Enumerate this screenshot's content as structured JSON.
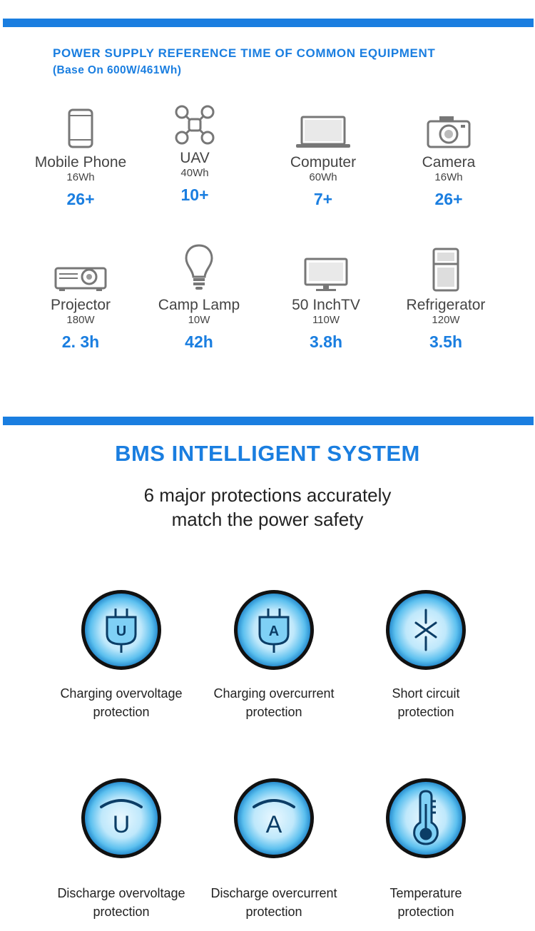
{
  "section1": {
    "title": "POWER SUPPLY REFERENCE TIME OF COMMON EQUIPMENT",
    "subtitle": "(Base On 600W/461Wh)",
    "devices": [
      {
        "name": "Mobile Phone",
        "spec": "16Wh",
        "time": "26+",
        "icon": "mobile-phone-icon"
      },
      {
        "name": "UAV",
        "spec": "40Wh",
        "time": "10+",
        "icon": "drone-icon"
      },
      {
        "name": "Computer",
        "spec": "60Wh",
        "time": "7+",
        "icon": "laptop-icon"
      },
      {
        "name": "Camera",
        "spec": "16Wh",
        "time": "26+",
        "icon": "camera-icon"
      },
      {
        "name": "Projector",
        "spec": "180W",
        "time": "2. 3h",
        "icon": "projector-icon"
      },
      {
        "name": "Camp Lamp",
        "spec": "10W",
        "time": "42h",
        "icon": "light-bulb-icon"
      },
      {
        "name": "50 InchTV",
        "spec": "110W",
        "time": "3.8h",
        "icon": "tv-icon"
      },
      {
        "name": "Refrigerator",
        "spec": "120W",
        "time": "3.5h",
        "icon": "refrigerator-icon"
      }
    ]
  },
  "section2": {
    "title": "BMS INTELLIGENT SYSTEM",
    "subtitle_line1": "6 major protections accurately",
    "subtitle_line2": "match the power safety",
    "protections": [
      {
        "line1": "Charging overvoltage",
        "line2": "protection",
        "icon": "plug-u-icon"
      },
      {
        "line1": "Charging overcurrent",
        "line2": "protection",
        "icon": "plug-a-icon"
      },
      {
        "line1": "Short circuit",
        "line2": "protection",
        "icon": "short-circuit-icon"
      },
      {
        "line1": "Discharge overvoltage",
        "line2": "protection",
        "icon": "discharge-u-icon"
      },
      {
        "line1": "Discharge overcurrent",
        "line2": "protection",
        "icon": "discharge-a-icon"
      },
      {
        "line1": "Temperature",
        "line2": "protection",
        "icon": "thermometer-icon"
      }
    ],
    "glyph_u": "U",
    "glyph_a": "A"
  },
  "colors": {
    "accent": "#1a7ee0",
    "icon_gray": "#7a7a7a",
    "circle_glow": "#7fd0f5",
    "circle_ring": "#0a1a2a"
  }
}
